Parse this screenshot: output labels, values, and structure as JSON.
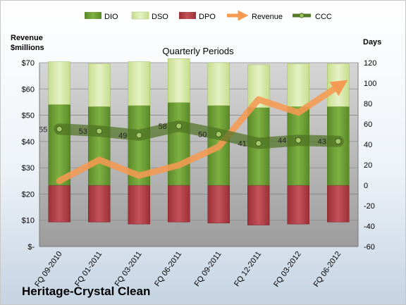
{
  "company": "Heritage-Crystal Clean",
  "chart_data": {
    "type": "bar",
    "title": "Quarterly Periods",
    "y_left_label": [
      "Revenue",
      "$millions"
    ],
    "y_right_label": "Days",
    "categories": [
      "FQ 09-2010",
      "FQ 01-2011",
      "FQ 03-2011",
      "FQ 06-2011",
      "FQ 09-2011",
      "FQ 12-2011",
      "FQ 03-2012",
      "FQ 06-2012"
    ],
    "y_left_ticks": [
      "$-",
      "$10",
      "$20",
      "$30",
      "$40",
      "$50",
      "$60",
      "$70"
    ],
    "y_right_ticks": [
      "-60",
      "-40",
      "-20",
      "0",
      "20",
      "40",
      "60",
      "80",
      "100",
      "120"
    ],
    "ylim_left": [
      0,
      70
    ],
    "ylim_right": [
      -60,
      120
    ],
    "legend_position": "top",
    "series": [
      {
        "name": "DIO",
        "type": "bar",
        "color": "#6a9a32",
        "values": [
          79,
          77,
          78,
          81,
          78,
          76,
          77,
          77
        ]
      },
      {
        "name": "DSO",
        "type": "bar",
        "color": "#d4e6a6",
        "values": [
          42,
          42,
          43,
          43,
          42,
          42,
          42,
          42
        ]
      },
      {
        "name": "DPO",
        "type": "bar",
        "color": "#b53c44",
        "values": [
          -36,
          -36,
          -38,
          -36,
          -37,
          -39,
          -38,
          -36
        ]
      },
      {
        "name": "Revenue",
        "type": "line",
        "color": "#f59a52",
        "values": [
          25,
          33,
          27,
          31,
          38,
          56,
          51,
          61
        ]
      },
      {
        "name": "CCC",
        "type": "line",
        "color": "#557a28",
        "values": [
          55,
          53,
          49,
          58,
          50,
          41,
          44,
          43
        ]
      }
    ],
    "ccc_labels": [
      "55",
      "53",
      "49",
      "58",
      "50",
      "41",
      "44",
      "43"
    ]
  }
}
